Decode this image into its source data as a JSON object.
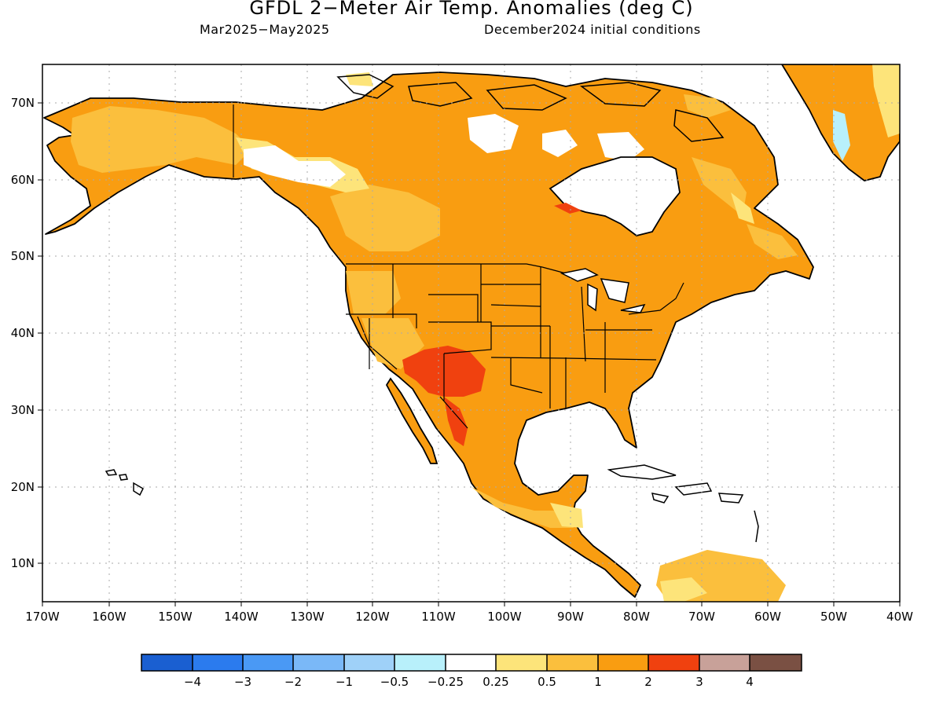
{
  "title": "GFDL 2−Meter Air Temp. Anomalies (deg C)",
  "subtitle_left": "Mar2025−May2025",
  "subtitle_right": "December2024 initial conditions",
  "axes": {
    "lon_ticks": [
      "170W",
      "160W",
      "150W",
      "140W",
      "130W",
      "120W",
      "110W",
      "100W",
      "90W",
      "80W",
      "70W",
      "60W",
      "50W",
      "40W"
    ],
    "lat_ticks": [
      "70N",
      "60N",
      "50N",
      "40N",
      "30N",
      "20N",
      "10N"
    ],
    "lon_range": [
      -170,
      -40
    ],
    "lat_range": [
      5,
      75
    ],
    "grid": "dotted"
  },
  "colorbar": {
    "labels": [
      "−4",
      "−3",
      "−2",
      "−1",
      "−0.5",
      "−0.25",
      "0.25",
      "0.5",
      "1",
      "2",
      "3",
      "4"
    ],
    "colors": [
      "#1a5fd1",
      "#2b7bee",
      "#4a99f5",
      "#7ab8f7",
      "#9fd1f8",
      "#b8f0fb",
      "#ffffff",
      "#fde47a",
      "#fbbf3d",
      "#f99d11",
      "#f0410f",
      "#c8a199",
      "#7a5043"
    ]
  },
  "palette": {
    "strong_warm": "#f99d11",
    "warm": "#fbbf3d",
    "slight_warm": "#fde47a",
    "very_warm": "#f0410f",
    "slight_cool": "#b8f0fb"
  }
}
